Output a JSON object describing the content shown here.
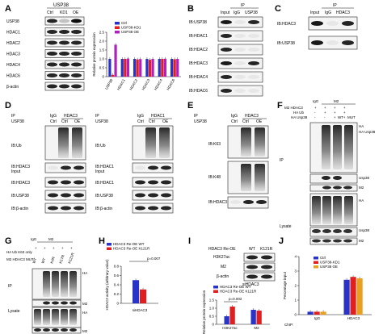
{
  "panels": {
    "A": {
      "letter": "A",
      "header": "USP38",
      "cols": [
        "Ctrl",
        "KD1",
        "OE"
      ],
      "rows": [
        "USP38",
        "HDAC1",
        "HDAC2",
        "HDAC3",
        "HDAC4",
        "HDAC6",
        "β-actin"
      ]
    },
    "B": {
      "letter": "B",
      "ip_label": "IP",
      "cols": [
        "Input",
        "IgG",
        "USP38"
      ],
      "rows": [
        "IB:USP38",
        "IB:HDAC1",
        "IB:HDAC2",
        "IB:HDAC3",
        "IB:HDAC4",
        "IB:HDAC6"
      ]
    },
    "C": {
      "letter": "C",
      "ip_label": "IP",
      "cols": [
        "Input",
        "IgG",
        "HDAC3"
      ],
      "rows": [
        "IB:HDAC3",
        "IB:USP38"
      ]
    },
    "D": {
      "letter": "D",
      "left_ip": [
        "IP",
        "USP38"
      ],
      "left_cols_top": [
        "IgG",
        "HDAC3"
      ],
      "left_cols_bottom": [
        "Ctrl",
        "Ctrl",
        "OE"
      ],
      "right_ip": [
        "IP",
        "USP38"
      ],
      "right_cols_top": [
        "IgG",
        "HDAC1"
      ],
      "right_cols_bottom": [
        "Ctrl",
        "Ctrl",
        "OE"
      ],
      "left_rows": [
        "IB:Ub",
        "IB:HDAC3",
        "Input",
        "IB:HDAC3",
        "IB:USP38",
        "IB:β-actin"
      ],
      "right_rows": [
        "IB:Ub",
        "IB:HDAC1",
        "Input",
        "IB:HDAC1",
        "IB:USP38",
        "IB:β-actin"
      ]
    },
    "E": {
      "letter": "E",
      "ip": [
        "IP",
        "USP38"
      ],
      "cols_top": [
        "IgG",
        "HDAC3"
      ],
      "cols_bottom": [
        "Ctrl",
        "Ctrl",
        "OE"
      ],
      "rows": [
        "IB:K63",
        "IB:K48",
        "IB:HDAC3"
      ]
    },
    "F": {
      "letter": "F",
      "conditions": [
        "M2 HDAC3",
        "HA Ub",
        "HA Usp38"
      ],
      "col_headers": [
        "IgG",
        "M2",
        "WT",
        "MUT"
      ],
      "signs": [
        "+",
        "+",
        "+",
        "+",
        "-",
        "+",
        "+",
        "+",
        "-",
        "-",
        "+",
        "+"
      ],
      "side_ip": "IP",
      "side_lysate": "Lysate",
      "right_labels": [
        "HA",
        "HA Usp38",
        "Usp38",
        "M2",
        "HA",
        "Usp38",
        "M2"
      ]
    },
    "G": {
      "letter": "G",
      "conditions": [
        "HA Ub K63 only",
        "M2 HDAC3 MUT"
      ],
      "col_headers": [
        "IgG",
        "M2"
      ],
      "lane_labels": [
        "WT",
        "WT",
        "K4R",
        "K17R",
        "K121R"
      ],
      "side_ip": "IP",
      "side_lysate": "Lysate",
      "right_labels": [
        "HA",
        "M2",
        "HA",
        "M2"
      ]
    },
    "H": {
      "letter": "H",
      "ylabel": "HDAC3 activity (arbitrary value)",
      "xlabel": "siHDAC3",
      "pvalue": "p=0.007"
    },
    "I": {
      "letter": "I",
      "header_left": "HDAC3 Re-OE",
      "header_cols": [
        "WT",
        "K121R"
      ],
      "blot_rows": [
        "H3K27ac",
        "M2",
        "β-actin"
      ],
      "blot_sub": "siHDAC3",
      "ylabel": "Relative protein expression",
      "pvalue": "p=0.002"
    },
    "J": {
      "letter": "J",
      "ylabel": "Percentage input",
      "chip_label": "ChIP:"
    }
  },
  "chart_data": [
    {
      "type": "bar",
      "panel": "A",
      "ylabel": "Relative protein expression",
      "categories": [
        "USP38",
        "HDAC1",
        "HDAC2",
        "HDAC3",
        "HDAC4",
        "HDAC6"
      ],
      "series": [
        {
          "name": "Ctrl",
          "values": [
            1.0,
            1.0,
            1.0,
            1.0,
            1.0,
            1.0
          ]
        },
        {
          "name": "USP38-KD1",
          "values": [
            0.1,
            1.0,
            0.97,
            0.95,
            1.0,
            0.98
          ]
        },
        {
          "name": "USP38 OE",
          "values": [
            1.8,
            1.02,
            0.99,
            1.0,
            1.01,
            1.0
          ]
        }
      ],
      "ylim": [
        0,
        2.5
      ],
      "yticks": [
        "0",
        "0.5",
        "1.0",
        "1.5",
        "2.0",
        "2.5"
      ],
      "colors": [
        "#2a33c8",
        "#e02020",
        "#b020c0"
      ]
    },
    {
      "type": "bar",
      "panel": "H",
      "ylabel": "HDAC3 activity (arbitrary value)",
      "xlabel": "siHDAC3",
      "categories": [
        "siHDAC3"
      ],
      "series": [
        {
          "name": "HDAC3 Re-OE WT",
          "values": [
            0.5
          ]
        },
        {
          "name": "HDAC3 Re-OE K121R",
          "values": [
            0.3
          ]
        }
      ],
      "ylim": [
        0,
        0.8
      ],
      "yticks": [
        "0",
        "0.2",
        "0.4",
        "0.6",
        "0.8"
      ],
      "colors": [
        "#2a33c8",
        "#e02020"
      ]
    },
    {
      "type": "bar",
      "panel": "I",
      "ylabel": "Relative protein expression",
      "categories": [
        "H3K27ac",
        "M2"
      ],
      "series": [
        {
          "name": "HDAC3 Re-OE WT",
          "values": [
            0.5,
            0.9
          ]
        },
        {
          "name": "HDAC3 Re-OE K121R",
          "values": [
            1.1,
            0.85
          ]
        }
      ],
      "ylim": [
        0,
        1.5
      ],
      "yticks": [
        "0",
        "0.5",
        "1.0",
        "1.5"
      ],
      "colors": [
        "#2a33c8",
        "#e02020"
      ]
    },
    {
      "type": "bar",
      "panel": "J",
      "ylabel": "Percentage input",
      "xlabel": "ChIP:",
      "categories": [
        "IgG",
        "HDAC3"
      ],
      "series": [
        {
          "name": "Ctrl",
          "values": [
            0.2,
            2.4
          ]
        },
        {
          "name": "USP38-KD1",
          "values": [
            0.2,
            2.6
          ]
        },
        {
          "name": "USP38 OE",
          "values": [
            0.2,
            2.5
          ]
        }
      ],
      "ylim": [
        0,
        4
      ],
      "yticks": [
        "0",
        "1",
        "2",
        "3",
        "4"
      ],
      "colors": [
        "#2a33c8",
        "#e02020",
        "#e8a020"
      ]
    }
  ]
}
